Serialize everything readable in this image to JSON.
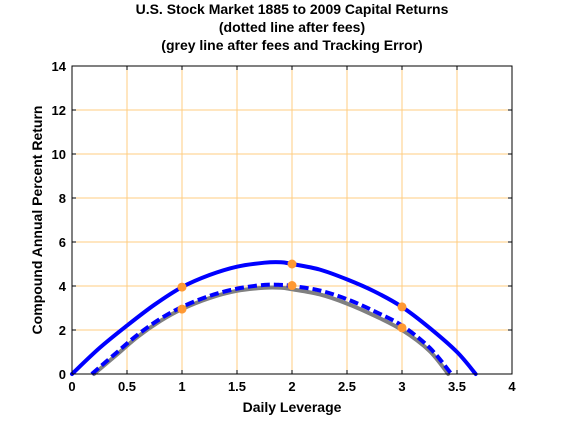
{
  "chart_data": {
    "type": "line",
    "title": [
      "U.S. Stock Market 1885 to 2009 Capital Returns",
      "(dotted line after fees)",
      "(grey line after fees and Tracking Error)"
    ],
    "xlabel": "Daily Leverage",
    "ylabel": "Compound Annual Percent Return",
    "xlim": [
      0,
      4
    ],
    "ylim": [
      0,
      14
    ],
    "x_ticks": [
      "0",
      "0.5",
      "1",
      "1.5",
      "2",
      "2.5",
      "3",
      "3.5",
      "4"
    ],
    "y_ticks": [
      "0",
      "2",
      "4",
      "6",
      "8",
      "10",
      "12",
      "14"
    ],
    "grid": true,
    "series": [
      {
        "style": "solid",
        "color": "#0000ff",
        "x": [
          0,
          0.25,
          0.5,
          0.75,
          1.0,
          1.25,
          1.5,
          1.75,
          1.9,
          2.0,
          2.25,
          2.5,
          2.75,
          3.0,
          3.25,
          3.5,
          3.67
        ],
        "y": [
          0,
          1.18,
          2.2,
          3.15,
          3.95,
          4.5,
          4.88,
          5.06,
          5.08,
          5.0,
          4.75,
          4.3,
          3.75,
          3.05,
          2.1,
          1.0,
          0
        ]
      },
      {
        "style": "dashed",
        "color": "#0000ff",
        "x": [
          0.18,
          0.4,
          0.6,
          0.8,
          1.0,
          1.25,
          1.5,
          1.75,
          1.9,
          2.0,
          2.25,
          2.5,
          2.75,
          3.0,
          3.25,
          3.45
        ],
        "y": [
          0,
          0.95,
          1.8,
          2.5,
          3.05,
          3.55,
          3.88,
          4.05,
          4.05,
          4.0,
          3.8,
          3.4,
          2.85,
          2.2,
          1.2,
          0
        ]
      },
      {
        "style": "solid",
        "color": "#808080",
        "x": [
          0.2,
          0.4,
          0.6,
          0.8,
          1.0,
          1.25,
          1.5,
          1.75,
          1.9,
          2.0,
          2.25,
          2.5,
          2.75,
          3.0,
          3.25,
          3.42
        ],
        "y": [
          0,
          0.85,
          1.7,
          2.4,
          2.95,
          3.45,
          3.78,
          3.92,
          3.92,
          3.85,
          3.62,
          3.2,
          2.65,
          2.0,
          1.05,
          0
        ]
      }
    ],
    "markers": {
      "color": "#ff9933",
      "points": [
        {
          "x": 1,
          "y": 3.95
        },
        {
          "x": 1,
          "y": 2.95
        },
        {
          "x": 2,
          "y": 5.0
        },
        {
          "x": 2,
          "y": 4.02
        },
        {
          "x": 3,
          "y": 3.05
        },
        {
          "x": 3,
          "y": 2.1
        }
      ]
    },
    "grid_color": "#ffcc80"
  }
}
